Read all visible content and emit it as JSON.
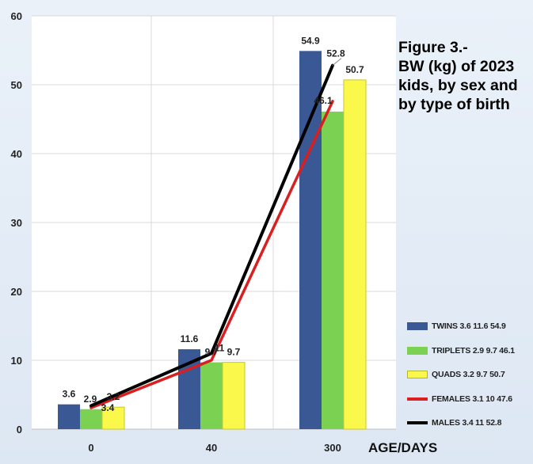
{
  "chart_data": {
    "type": "bar",
    "title_lines": [
      "Figure 3.-",
      "BW (kg) of 2023",
      "kids, by sex and",
      "by type of birth"
    ],
    "xlabel": "AGE/DAYS",
    "ylabel": "",
    "categories": [
      "0",
      "40",
      "300"
    ],
    "ylim": [
      0,
      60
    ],
    "yticks": [
      0,
      10,
      20,
      30,
      40,
      50,
      60
    ],
    "grid": true,
    "legend_position": "bottom-right",
    "series": [
      {
        "name": "TWINS",
        "legend_label": "TWINS 3.6 11.6 54.9",
        "kind": "bar",
        "color": "#3a5894",
        "values": [
          3.6,
          11.6,
          54.9
        ],
        "labels": [
          "3.6",
          "11.6",
          "54.9"
        ]
      },
      {
        "name": "TRIPLETS",
        "legend_label": "TRIPLETS 2.9 9.7 46.1",
        "kind": "bar",
        "color": "#7bd151",
        "values": [
          2.9,
          9.7,
          46.1
        ],
        "labels": [
          "2.9",
          "9.7",
          "46.1"
        ]
      },
      {
        "name": "QUADS",
        "legend_label": "QUADS 3.2 9.7 50.7",
        "kind": "bar",
        "color": "#faf84b",
        "values": [
          3.2,
          9.7,
          50.7
        ],
        "labels": [
          "3.2",
          "9.7",
          "50.7"
        ]
      },
      {
        "name": "FEMALES",
        "legend_label": "FEMALES 3.1 10 47.6",
        "kind": "line",
        "color": "#d91f1f",
        "values": [
          3.1,
          10,
          47.6
        ],
        "labels": [
          "3.1",
          "10",
          "47.6"
        ]
      },
      {
        "name": "MALES",
        "legend_label": "MALES 3.4 11 52.8",
        "kind": "line",
        "color": "#000000",
        "values": [
          3.4,
          11,
          52.8
        ],
        "labels": [
          "3.4",
          "11",
          "52.8"
        ]
      }
    ]
  }
}
